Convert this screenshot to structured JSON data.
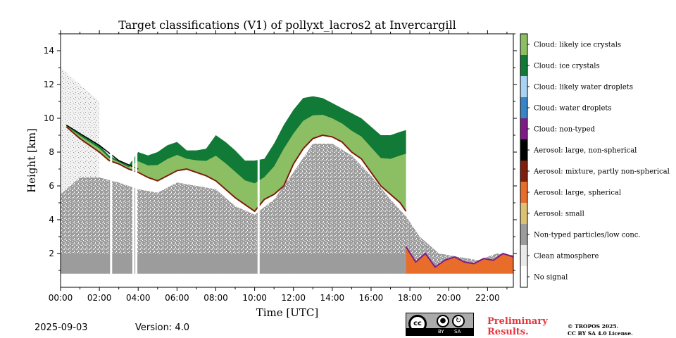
{
  "chart_data": {
    "type": "heatmap",
    "title": "Target classifications (V1) of pollyxt_lacros2 at Invercargill",
    "xlabel": "Time [UTC]",
    "ylabel": "Height [km]",
    "xlim": [
      0,
      23.33
    ],
    "ylim": [
      0,
      15
    ],
    "x_tick_values": [
      0,
      2,
      4,
      6,
      8,
      10,
      12,
      14,
      16,
      18,
      20,
      22
    ],
    "x_tick_labels": [
      "00:00",
      "02:00",
      "04:00",
      "06:00",
      "08:00",
      "10:00",
      "12:00",
      "14:00",
      "16:00",
      "18:00",
      "20:00",
      "22:00"
    ],
    "y_tick_values": [
      2,
      4,
      6,
      8,
      10,
      12,
      14
    ],
    "y_tick_labels": [
      "2",
      "4",
      "6",
      "8",
      "10",
      "12",
      "14"
    ],
    "legend": [
      {
        "label": "Cloud: likely ice crystals",
        "color": "#8cbf63"
      },
      {
        "label": "Cloud: ice crystals",
        "color": "#117a37"
      },
      {
        "label": "Cloud: likely water droplets",
        "color": "#a9d3f2"
      },
      {
        "label": "Cloud: water droplets",
        "color": "#3784c7"
      },
      {
        "label": "Cloud: non-typed",
        "color": "#7d1c86"
      },
      {
        "label": "Aerosol: large, non-spherical",
        "color": "#000000"
      },
      {
        "label": "Aerosol: mixture, partly non-spherical",
        "color": "#7e1e0c"
      },
      {
        "label": "Aerosol: large, spherical",
        "color": "#e86d2b"
      },
      {
        "label": "Aerosol: small",
        "color": "#dcc173"
      },
      {
        "label": "Non-typed particles/low conc.",
        "color": "#9c9c9c"
      },
      {
        "label": "Clean atmosphere",
        "color": "#eaeaea"
      },
      {
        "label": "No signal",
        "color": "#ffffff"
      }
    ],
    "cloud_top_km": [
      [
        0.3,
        9.6
      ],
      [
        1.0,
        9.1
      ],
      [
        2.0,
        8.4
      ],
      [
        2.5,
        7.8
      ],
      [
        3.0,
        7.5
      ],
      [
        3.5,
        7.2
      ],
      [
        4.0,
        8.0
      ],
      [
        4.5,
        7.8
      ],
      [
        5.0,
        8.0
      ],
      [
        5.5,
        8.4
      ],
      [
        6.0,
        8.6
      ],
      [
        6.5,
        8.1
      ],
      [
        7.0,
        8.1
      ],
      [
        7.5,
        8.2
      ],
      [
        8.0,
        9.0
      ],
      [
        8.5,
        8.6
      ],
      [
        9.0,
        8.1
      ],
      [
        9.5,
        7.5
      ],
      [
        10.0,
        7.5
      ],
      [
        10.5,
        7.6
      ],
      [
        11.0,
        8.5
      ],
      [
        11.5,
        9.6
      ],
      [
        12.0,
        10.5
      ],
      [
        12.5,
        11.2
      ],
      [
        13.0,
        11.3
      ],
      [
        13.5,
        11.2
      ],
      [
        14.0,
        10.9
      ],
      [
        14.5,
        10.6
      ],
      [
        15.0,
        10.3
      ],
      [
        15.5,
        10.0
      ],
      [
        16.0,
        9.5
      ],
      [
        16.5,
        9.0
      ],
      [
        17.0,
        9.0
      ],
      [
        17.5,
        9.2
      ],
      [
        17.8,
        9.3
      ]
    ],
    "cloud_base_km": [
      [
        0.3,
        9.5
      ],
      [
        1.0,
        8.8
      ],
      [
        2.0,
        8.0
      ],
      [
        2.5,
        7.5
      ],
      [
        3.0,
        7.3
      ],
      [
        3.5,
        7.0
      ],
      [
        4.0,
        6.8
      ],
      [
        4.5,
        6.5
      ],
      [
        5.0,
        6.3
      ],
      [
        5.5,
        6.6
      ],
      [
        6.0,
        6.9
      ],
      [
        6.5,
        7.0
      ],
      [
        7.0,
        6.8
      ],
      [
        7.5,
        6.6
      ],
      [
        8.0,
        6.3
      ],
      [
        8.5,
        5.8
      ],
      [
        9.0,
        5.3
      ],
      [
        9.5,
        4.9
      ],
      [
        10.0,
        4.5
      ],
      [
        10.5,
        5.2
      ],
      [
        11.0,
        5.5
      ],
      [
        11.5,
        6.0
      ],
      [
        12.0,
        7.3
      ],
      [
        12.5,
        8.2
      ],
      [
        13.0,
        8.8
      ],
      [
        13.5,
        9.0
      ],
      [
        14.0,
        8.9
      ],
      [
        14.5,
        8.6
      ],
      [
        15.0,
        8.0
      ],
      [
        15.5,
        7.6
      ],
      [
        16.0,
        6.8
      ],
      [
        16.5,
        6.0
      ],
      [
        17.0,
        5.5
      ],
      [
        17.5,
        5.0
      ],
      [
        17.8,
        4.5
      ]
    ],
    "aerosol_top_km": [
      [
        0.0,
        5.5
      ],
      [
        1.0,
        6.5
      ],
      [
        2.0,
        6.5
      ],
      [
        3.0,
        6.2
      ],
      [
        4.0,
        5.8
      ],
      [
        5.0,
        5.6
      ],
      [
        6.0,
        6.2
      ],
      [
        7.0,
        6.0
      ],
      [
        8.0,
        5.8
      ],
      [
        9.0,
        4.8
      ],
      [
        10.0,
        4.3
      ],
      [
        11.0,
        5.2
      ],
      [
        12.0,
        6.8
      ],
      [
        13.0,
        8.5
      ],
      [
        14.0,
        8.5
      ],
      [
        15.0,
        7.8
      ],
      [
        16.0,
        6.6
      ],
      [
        17.0,
        5.2
      ],
      [
        17.8,
        4.2
      ],
      [
        18.5,
        3.0
      ],
      [
        19.5,
        2.0
      ],
      [
        20.5,
        1.8
      ],
      [
        21.5,
        1.6
      ],
      [
        22.5,
        2.0
      ],
      [
        23.33,
        1.9
      ]
    ],
    "ground_km": 0.8,
    "date": "2025-09-03",
    "version": "Version: 4.0",
    "license_badge": {
      "cc": "cc",
      "by": "BY",
      "sa": "SA"
    },
    "preliminary": [
      "Preliminary",
      "Results."
    ],
    "copyright": [
      "© TROPOS 2025.",
      "CC BY SA 4.0 License."
    ]
  }
}
